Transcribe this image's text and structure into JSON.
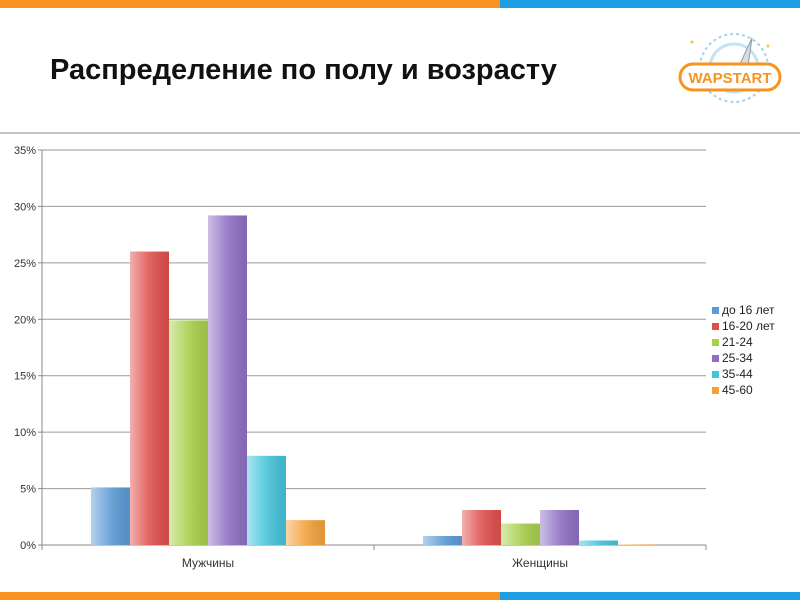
{
  "slide": {
    "title": "Распределение по полу и возрасту",
    "logo_text": "WAPSTART"
  },
  "colors": {
    "accent_orange": "#f7931e",
    "accent_blue": "#1e9fe3"
  },
  "chart_data": {
    "type": "bar",
    "categories": [
      "Мужчины",
      "Женщины"
    ],
    "series": [
      {
        "name": "до 16 лет",
        "values": [
          5.1,
          0.8
        ],
        "color": "#5b9bd5"
      },
      {
        "name": "16-20 лет",
        "values": [
          26.0,
          3.1
        ],
        "color": "#e0504b"
      },
      {
        "name": "21-24",
        "values": [
          19.9,
          1.9
        ],
        "color": "#a8d04a"
      },
      {
        "name": "25-34",
        "values": [
          29.2,
          3.1
        ],
        "color": "#8f6fc4"
      },
      {
        "name": "35-44",
        "values": [
          7.9,
          0.4
        ],
        "color": "#44c3db"
      },
      {
        "name": "45-60",
        "values": [
          2.2,
          0.05
        ],
        "color": "#f5a13b"
      }
    ],
    "y_ticks": [
      "0%",
      "5%",
      "10%",
      "15%",
      "20%",
      "25%",
      "30%",
      "35%"
    ],
    "ylim": [
      0,
      35
    ],
    "grid": true,
    "legend_position": "right"
  }
}
